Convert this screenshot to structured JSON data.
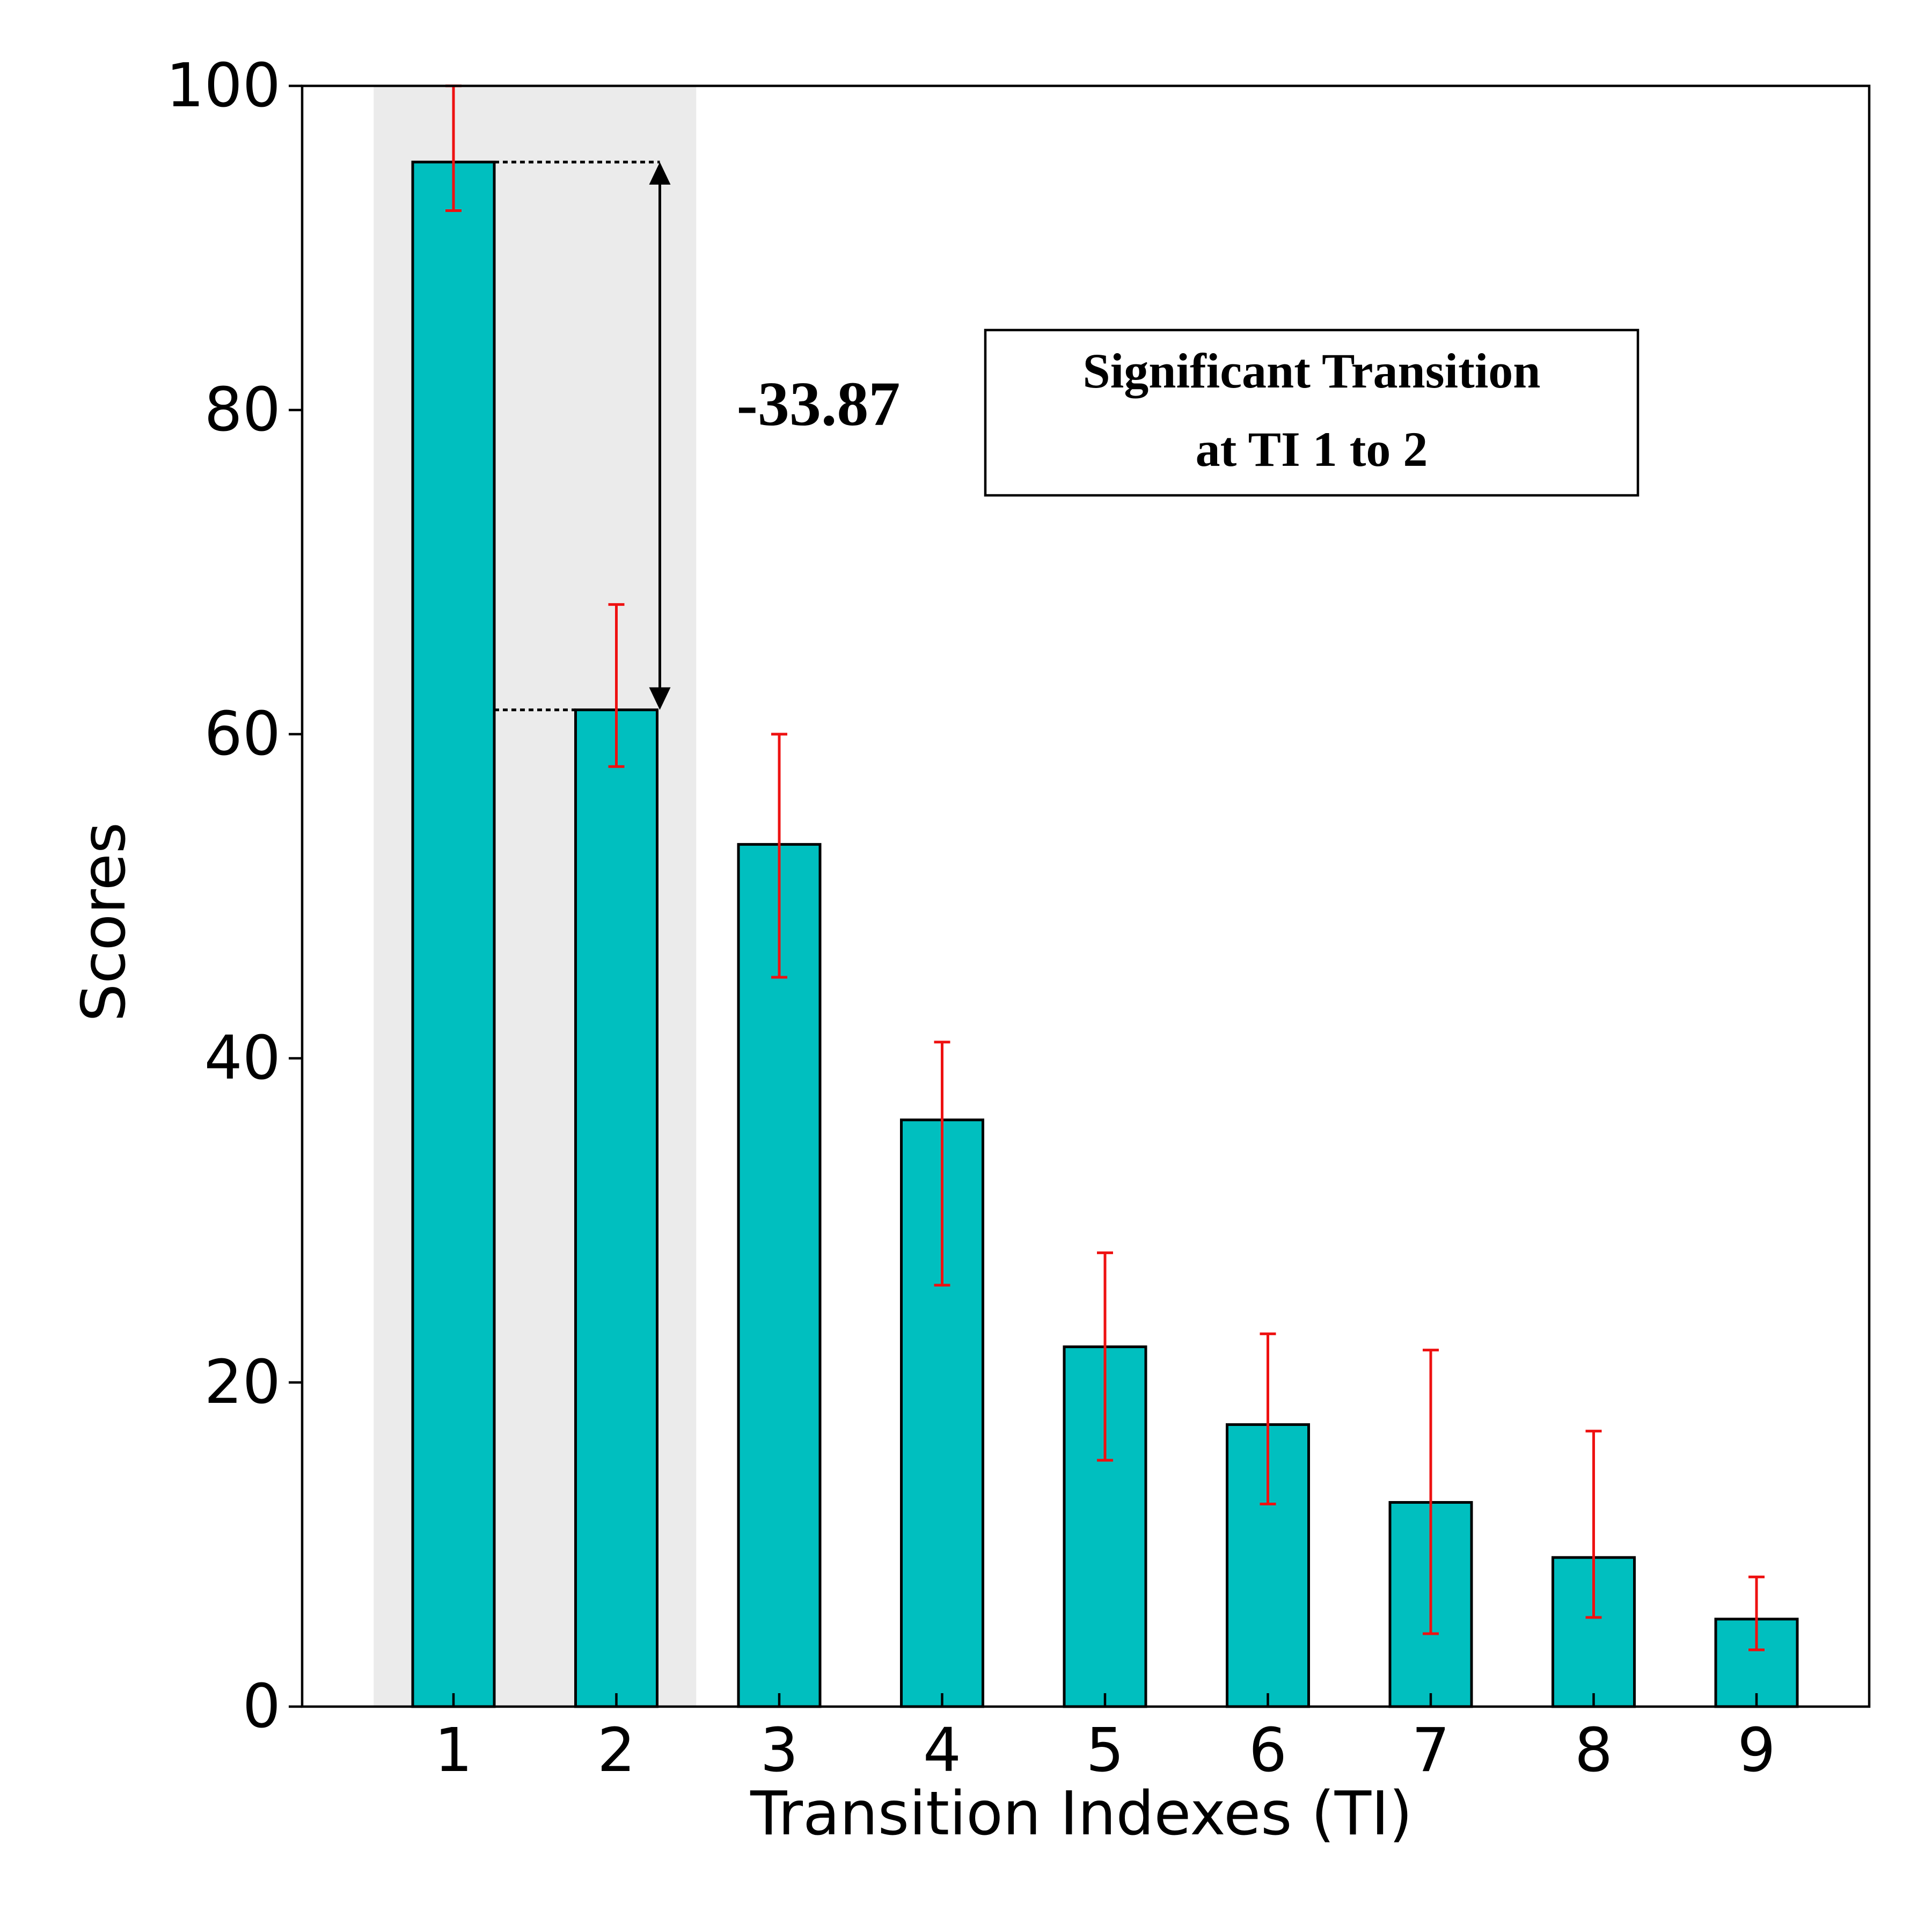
{
  "chart_data": {
    "type": "bar",
    "title": "",
    "xlabel": "Transition Indexes (TI)",
    "ylabel": "Scores",
    "categories": [
      "1",
      "2",
      "3",
      "4",
      "5",
      "6",
      "7",
      "8",
      "9"
    ],
    "values": [
      95.3,
      61.5,
      53.2,
      36.2,
      22.2,
      17.4,
      12.6,
      9.2,
      5.4
    ],
    "error_low": [
      92.3,
      58.0,
      45.0,
      26.0,
      15.2,
      12.5,
      4.5,
      5.5,
      3.5
    ],
    "error_high": [
      100.0,
      68.0,
      60.0,
      41.0,
      28.0,
      23.0,
      22.0,
      17.0,
      8.0
    ],
    "ylim": [
      0,
      100
    ],
    "yticks": [
      0,
      20,
      40,
      60,
      80,
      100
    ],
    "grid": false,
    "highlight_categories": [
      "1",
      "2"
    ],
    "difference_label": "-33.87",
    "annotation_lines": [
      "Significant Transition",
      "at TI 1 to 2"
    ],
    "colors": {
      "bar_fill": "#00bfbf",
      "bar_edge": "#000000",
      "error_bar": "#ee1111",
      "highlight_band": "#ebebeb",
      "text": "#000000"
    }
  }
}
